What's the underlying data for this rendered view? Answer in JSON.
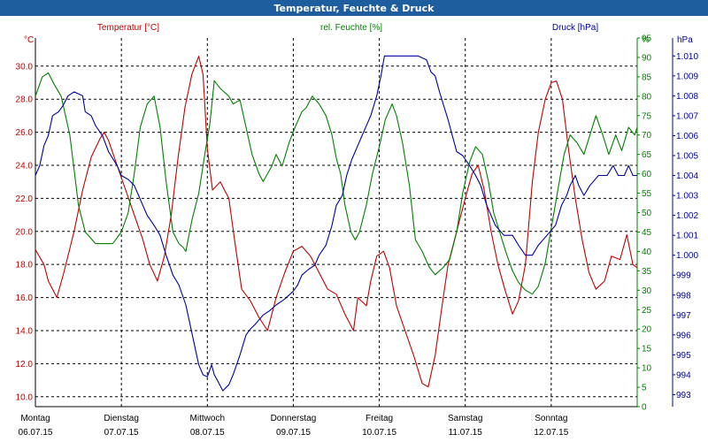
{
  "chart_data": {
    "type": "line",
    "title": "Temperatur, Feuchte & Druck",
    "colors": {
      "temperature": "#c00000",
      "humidity": "#008000",
      "pressure": "#0000a0",
      "title_bar": "#1f5e9e"
    },
    "x_range": [
      0,
      7
    ],
    "x_ticks": [
      {
        "x": 0,
        "day": "Montag",
        "date": "06.07.15"
      },
      {
        "x": 1,
        "day": "Dienstag",
        "date": "07.07.15"
      },
      {
        "x": 2,
        "day": "Mittwoch",
        "date": "08.07.15"
      },
      {
        "x": 3,
        "day": "Donnerstag",
        "date": "09.07.15"
      },
      {
        "x": 4,
        "day": "Freitag",
        "date": "10.07.15"
      },
      {
        "x": 5,
        "day": "Samstag",
        "date": "11.07.15"
      },
      {
        "x": 6,
        "day": "Sonntag",
        "date": "12.07.15"
      }
    ],
    "axes": {
      "temperature": {
        "unit": "°C",
        "range": [
          9.4,
          31.7
        ],
        "ticks": [
          "30.0",
          "28.0",
          "26.0",
          "24.0",
          "22.0",
          "20.0",
          "18.0",
          "16.0",
          "14.0",
          "12.0",
          "10.0"
        ]
      },
      "humidity": {
        "unit": "%",
        "range": [
          0,
          95
        ],
        "ticks": [
          "95",
          "90",
          "85",
          "80",
          "75",
          "70",
          "65",
          "60",
          "55",
          "50",
          "45",
          "40",
          "35",
          "30",
          "25",
          "20",
          "15",
          "10",
          "5",
          "0"
        ]
      },
      "pressure": {
        "unit": "hPa",
        "range": [
          992.4,
          1010.9
        ],
        "ticks": [
          "1.010",
          "1.009",
          "1.008",
          "1.007",
          "1.006",
          "1.005",
          "1.004",
          "1.003",
          "1.002",
          "1.001",
          "1.000",
          "999",
          "998",
          "997",
          "996",
          "995",
          "994",
          "993"
        ]
      }
    },
    "series": [
      {
        "name": "Temperatur [°C]",
        "axis": "temperature",
        "points": [
          [
            0,
            18.9
          ],
          [
            0.1,
            18.0
          ],
          [
            0.15,
            17.0
          ],
          [
            0.25,
            16.0
          ],
          [
            0.33,
            17.5
          ],
          [
            0.45,
            20.0
          ],
          [
            0.55,
            22.5
          ],
          [
            0.65,
            24.5
          ],
          [
            0.75,
            25.6
          ],
          [
            0.8,
            26.0
          ],
          [
            0.85,
            25.5
          ],
          [
            0.95,
            24.0
          ],
          [
            1.05,
            22.5
          ],
          [
            1.15,
            21.0
          ],
          [
            1.25,
            19.5
          ],
          [
            1.33,
            18.0
          ],
          [
            1.42,
            17.0
          ],
          [
            1.5,
            18.5
          ],
          [
            1.58,
            21.0
          ],
          [
            1.66,
            24.5
          ],
          [
            1.74,
            27.5
          ],
          [
            1.82,
            29.5
          ],
          [
            1.9,
            30.6
          ],
          [
            1.95,
            29.5
          ],
          [
            2.0,
            25.0
          ],
          [
            2.06,
            22.5
          ],
          [
            2.15,
            23.0
          ],
          [
            2.25,
            22.0
          ],
          [
            2.33,
            19.0
          ],
          [
            2.4,
            16.5
          ],
          [
            2.5,
            15.8
          ],
          [
            2.6,
            14.8
          ],
          [
            2.7,
            14.0
          ],
          [
            2.8,
            16.0
          ],
          [
            2.9,
            17.5
          ],
          [
            3.0,
            18.8
          ],
          [
            3.1,
            19.1
          ],
          [
            3.2,
            18.5
          ],
          [
            3.3,
            17.5
          ],
          [
            3.4,
            16.5
          ],
          [
            3.5,
            16.2
          ],
          [
            3.6,
            15.0
          ],
          [
            3.7,
            14.0
          ],
          [
            3.75,
            16.0
          ],
          [
            3.85,
            15.5
          ],
          [
            3.9,
            17.0
          ],
          [
            3.97,
            18.5
          ],
          [
            4.05,
            18.8
          ],
          [
            4.12,
            17.8
          ],
          [
            4.2,
            15.5
          ],
          [
            4.3,
            14.0
          ],
          [
            4.4,
            12.5
          ],
          [
            4.5,
            10.8
          ],
          [
            4.57,
            10.6
          ],
          [
            4.65,
            12.5
          ],
          [
            4.73,
            15.5
          ],
          [
            4.8,
            18.0
          ],
          [
            4.9,
            20.0
          ],
          [
            5.0,
            22.0
          ],
          [
            5.08,
            23.5
          ],
          [
            5.15,
            24.0
          ],
          [
            5.22,
            22.5
          ],
          [
            5.3,
            20.0
          ],
          [
            5.38,
            18.0
          ],
          [
            5.46,
            16.5
          ],
          [
            5.55,
            15.0
          ],
          [
            5.62,
            15.8
          ],
          [
            5.7,
            18.0
          ],
          [
            5.78,
            23.0
          ],
          [
            5.85,
            26.0
          ],
          [
            5.93,
            28.0
          ],
          [
            6.0,
            29.0
          ],
          [
            6.06,
            29.1
          ],
          [
            6.13,
            28.0
          ],
          [
            6.2,
            25.0
          ],
          [
            6.28,
            22.0
          ],
          [
            6.36,
            19.5
          ],
          [
            6.44,
            17.5
          ],
          [
            6.52,
            16.5
          ],
          [
            6.62,
            17.0
          ],
          [
            6.7,
            18.5
          ],
          [
            6.8,
            18.3
          ],
          [
            6.88,
            19.8
          ],
          [
            6.95,
            18.0
          ],
          [
            7.0,
            17.8
          ]
        ]
      },
      {
        "name": "rel. Feuchte [%]",
        "axis": "humidity",
        "points": [
          [
            0,
            80
          ],
          [
            0.08,
            85
          ],
          [
            0.15,
            86
          ],
          [
            0.22,
            83
          ],
          [
            0.3,
            80
          ],
          [
            0.4,
            70
          ],
          [
            0.5,
            52
          ],
          [
            0.58,
            45
          ],
          [
            0.7,
            42
          ],
          [
            0.8,
            42
          ],
          [
            0.9,
            42
          ],
          [
            1.0,
            45
          ],
          [
            1.08,
            50
          ],
          [
            1.15,
            60
          ],
          [
            1.22,
            72
          ],
          [
            1.3,
            78
          ],
          [
            1.38,
            80
          ],
          [
            1.45,
            72
          ],
          [
            1.52,
            58
          ],
          [
            1.6,
            45
          ],
          [
            1.67,
            42
          ],
          [
            1.72,
            41
          ],
          [
            1.75,
            40
          ],
          [
            1.82,
            48
          ],
          [
            1.9,
            55
          ],
          [
            1.97,
            65
          ],
          [
            2.03,
            73
          ],
          [
            2.08,
            84
          ],
          [
            2.15,
            82
          ],
          [
            2.25,
            80
          ],
          [
            2.3,
            78
          ],
          [
            2.38,
            79
          ],
          [
            2.45,
            72
          ],
          [
            2.52,
            65
          ],
          [
            2.6,
            60
          ],
          [
            2.65,
            58
          ],
          [
            2.75,
            62
          ],
          [
            2.8,
            65
          ],
          [
            2.87,
            62
          ],
          [
            2.95,
            68
          ],
          [
            3.02,
            72
          ],
          [
            3.1,
            76
          ],
          [
            3.15,
            77
          ],
          [
            3.22,
            80
          ],
          [
            3.3,
            78
          ],
          [
            3.38,
            75
          ],
          [
            3.45,
            70
          ],
          [
            3.5,
            64
          ],
          [
            3.55,
            60
          ],
          [
            3.6,
            52
          ],
          [
            3.67,
            45
          ],
          [
            3.72,
            43
          ],
          [
            3.77,
            45
          ],
          [
            3.85,
            52
          ],
          [
            3.92,
            60
          ],
          [
            4.0,
            67
          ],
          [
            4.07,
            74
          ],
          [
            4.15,
            78
          ],
          [
            4.2,
            75
          ],
          [
            4.27,
            68
          ],
          [
            4.35,
            57
          ],
          [
            4.42,
            43
          ],
          [
            4.5,
            40
          ],
          [
            4.58,
            36
          ],
          [
            4.65,
            34
          ],
          [
            4.75,
            36
          ],
          [
            4.82,
            38
          ],
          [
            4.9,
            45
          ],
          [
            4.97,
            55
          ],
          [
            5.05,
            63
          ],
          [
            5.12,
            67
          ],
          [
            5.2,
            65
          ],
          [
            5.27,
            58
          ],
          [
            5.33,
            50
          ],
          [
            5.4,
            45
          ],
          [
            5.47,
            40
          ],
          [
            5.55,
            35
          ],
          [
            5.62,
            32
          ],
          [
            5.7,
            30
          ],
          [
            5.78,
            29
          ],
          [
            5.85,
            31
          ],
          [
            5.93,
            37
          ],
          [
            6.0,
            46
          ],
          [
            6.07,
            55
          ],
          [
            6.15,
            65
          ],
          [
            6.22,
            70
          ],
          [
            6.3,
            68
          ],
          [
            6.38,
            65
          ],
          [
            6.45,
            70
          ],
          [
            6.52,
            75
          ],
          [
            6.6,
            70
          ],
          [
            6.67,
            65
          ],
          [
            6.75,
            70
          ],
          [
            6.82,
            66
          ],
          [
            6.9,
            72
          ],
          [
            6.97,
            70
          ],
          [
            7.0,
            72
          ]
        ]
      },
      {
        "name": "Druck [hPa]",
        "axis": "pressure",
        "points": [
          [
            0,
            1004.0
          ],
          [
            0.05,
            1004.5
          ],
          [
            0.1,
            1005.5
          ],
          [
            0.15,
            1006.0
          ],
          [
            0.2,
            1007.0
          ],
          [
            0.27,
            1007.2
          ],
          [
            0.32,
            1007.5
          ],
          [
            0.38,
            1008.0
          ],
          [
            0.45,
            1008.2
          ],
          [
            0.55,
            1008.0
          ],
          [
            0.58,
            1007.2
          ],
          [
            0.65,
            1007.0
          ],
          [
            0.7,
            1006.5
          ],
          [
            0.78,
            1006.0
          ],
          [
            0.85,
            1005.2
          ],
          [
            0.95,
            1004.5
          ],
          [
            1.0,
            1004.0
          ],
          [
            1.08,
            1003.8
          ],
          [
            1.15,
            1003.5
          ],
          [
            1.2,
            1003.0
          ],
          [
            1.25,
            1002.5
          ],
          [
            1.3,
            1002.0
          ],
          [
            1.38,
            1001.5
          ],
          [
            1.45,
            1001.0
          ],
          [
            1.52,
            1000.0
          ],
          [
            1.6,
            999.0
          ],
          [
            1.67,
            998.5
          ],
          [
            1.75,
            997.5
          ],
          [
            1.8,
            996.5
          ],
          [
            1.85,
            995.5
          ],
          [
            1.9,
            994.5
          ],
          [
            1.95,
            994.0
          ],
          [
            2.0,
            993.9
          ],
          [
            2.05,
            994.5
          ],
          [
            2.08,
            994.0
          ],
          [
            2.12,
            993.7
          ],
          [
            2.18,
            993.2
          ],
          [
            2.25,
            993.5
          ],
          [
            2.3,
            994.0
          ],
          [
            2.38,
            995.0
          ],
          [
            2.45,
            996.0
          ],
          [
            2.5,
            996.3
          ],
          [
            2.55,
            996.5
          ],
          [
            2.65,
            997.0
          ],
          [
            2.72,
            997.2
          ],
          [
            2.8,
            997.5
          ],
          [
            2.9,
            997.8
          ],
          [
            3.0,
            998.2
          ],
          [
            3.05,
            998.5
          ],
          [
            3.1,
            999.0
          ],
          [
            3.18,
            999.3
          ],
          [
            3.25,
            999.5
          ],
          [
            3.3,
            1000.0
          ],
          [
            3.38,
            1000.5
          ],
          [
            3.45,
            1001.5
          ],
          [
            3.5,
            1002.5
          ],
          [
            3.57,
            1003.0
          ],
          [
            3.62,
            1004.0
          ],
          [
            3.68,
            1004.8
          ],
          [
            3.75,
            1005.5
          ],
          [
            3.8,
            1006.0
          ],
          [
            3.85,
            1006.5
          ],
          [
            3.9,
            1007.0
          ],
          [
            3.97,
            1008.0
          ],
          [
            4.02,
            1009.0
          ],
          [
            4.06,
            1010.0
          ],
          [
            4.1,
            1010.0
          ],
          [
            4.25,
            1010.0
          ],
          [
            4.45,
            1010.0
          ],
          [
            4.55,
            1009.8
          ],
          [
            4.6,
            1009.2
          ],
          [
            4.65,
            1009.0
          ],
          [
            4.7,
            1008.2
          ],
          [
            4.75,
            1007.5
          ],
          [
            4.8,
            1006.8
          ],
          [
            4.85,
            1006.0
          ],
          [
            4.9,
            1005.2
          ],
          [
            4.97,
            1005.0
          ],
          [
            5.05,
            1004.5
          ],
          [
            5.12,
            1004.0
          ],
          [
            5.18,
            1003.5
          ],
          [
            5.25,
            1002.5
          ],
          [
            5.35,
            1001.5
          ],
          [
            5.45,
            1001.0
          ],
          [
            5.55,
            1001.0
          ],
          [
            5.62,
            1000.5
          ],
          [
            5.7,
            1000.0
          ],
          [
            5.78,
            1000.0
          ],
          [
            5.85,
            1000.5
          ],
          [
            5.95,
            1001.0
          ],
          [
            6.05,
            1001.5
          ],
          [
            6.12,
            1002.5
          ],
          [
            6.18,
            1003.0
          ],
          [
            6.22,
            1003.5
          ],
          [
            6.28,
            1004.0
          ],
          [
            6.32,
            1003.5
          ],
          [
            6.38,
            1003.0
          ],
          [
            6.45,
            1003.5
          ],
          [
            6.55,
            1004.0
          ],
          [
            6.65,
            1004.0
          ],
          [
            6.72,
            1004.5
          ],
          [
            6.78,
            1004.0
          ],
          [
            6.85,
            1004.0
          ],
          [
            6.9,
            1004.5
          ],
          [
            6.95,
            1004.0
          ],
          [
            7.0,
            1004.0
          ]
        ]
      }
    ]
  }
}
